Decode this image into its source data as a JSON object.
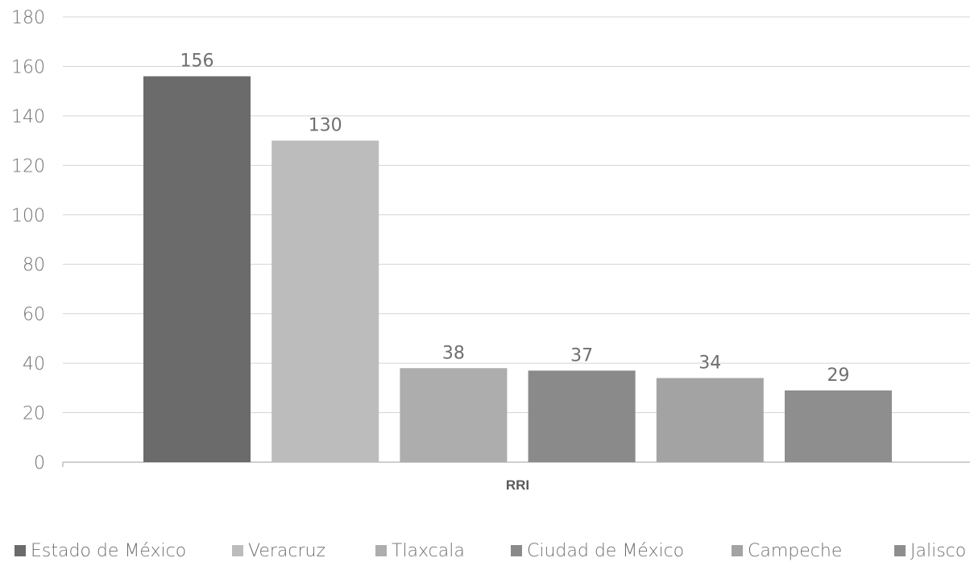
{
  "chart_data": {
    "type": "bar",
    "categories": [
      "RRI"
    ],
    "series": [
      {
        "name": "Estado de México",
        "values": [
          156
        ],
        "color": "#6b6b6b"
      },
      {
        "name": "Veracruz",
        "values": [
          130
        ],
        "color": "#bcbcbc"
      },
      {
        "name": "Tlaxcala",
        "values": [
          38
        ],
        "color": "#adadad"
      },
      {
        "name": "Ciudad de México",
        "values": [
          37
        ],
        "color": "#8a8a8a"
      },
      {
        "name": "Campeche",
        "values": [
          34
        ],
        "color": "#a3a3a3"
      },
      {
        "name": "Jalisco",
        "values": [
          29
        ],
        "color": "#8e8e8e"
      }
    ],
    "yticks": [
      "0",
      "20",
      "40",
      "60",
      "80",
      "100",
      "120",
      "140",
      "160",
      "180"
    ],
    "ylim": [
      0,
      180
    ],
    "grid": true,
    "legend_position": "bottom",
    "axis_color": "#bfbfbf"
  }
}
